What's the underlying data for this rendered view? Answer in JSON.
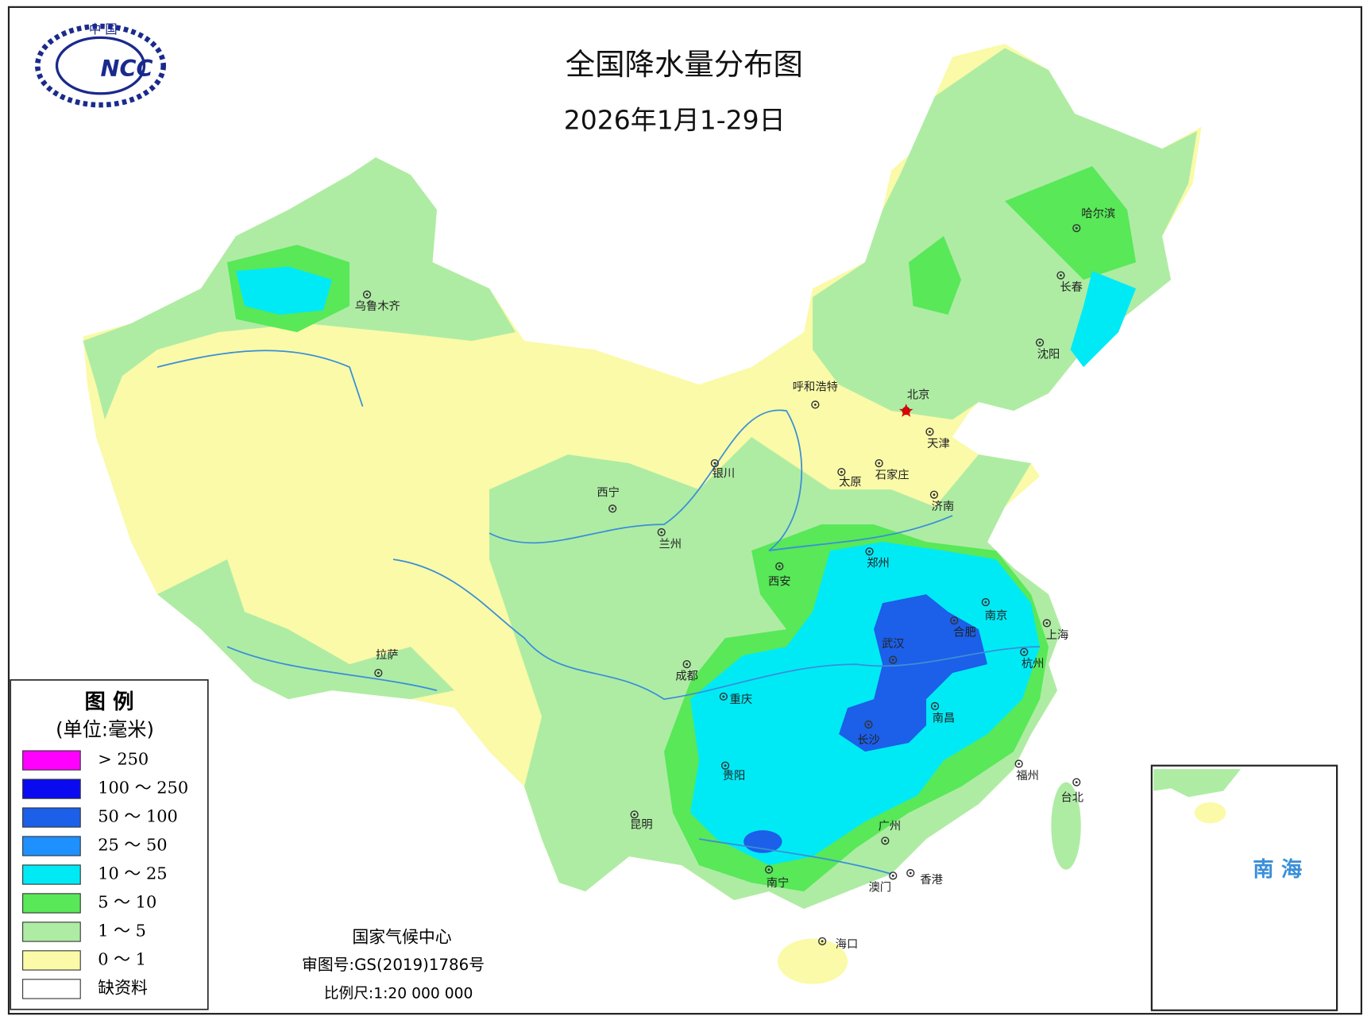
{
  "header": {
    "logo_text": "中 国",
    "logo_abbr": "NCC",
    "title": "全国降水量分布图",
    "subtitle": "2026年1月1-29日"
  },
  "legend": {
    "title": "图 例",
    "unit": "(单位:毫米)",
    "items": [
      {
        "label": "> 250",
        "color": "#ff00ff"
      },
      {
        "label": "100 ～ 250",
        "color": "#0a0af0"
      },
      {
        "label": "50 ～ 100",
        "color": "#1c5fe8"
      },
      {
        "label": "25 ～ 50",
        "color": "#1e90ff"
      },
      {
        "label": "10 ～ 25",
        "color": "#00eaf6"
      },
      {
        "label": "5 ～ 10",
        "color": "#58e858"
      },
      {
        "label": "1 ～ 5",
        "color": "#aeeca4"
      },
      {
        "label": "0 ～ 1",
        "color": "#fafaa8"
      },
      {
        "label": "缺资料",
        "color": "#ffffff"
      }
    ]
  },
  "cities": [
    {
      "name": "乌鲁木齐"
    },
    {
      "name": "拉萨"
    },
    {
      "name": "西宁"
    },
    {
      "name": "兰州"
    },
    {
      "name": "银川"
    },
    {
      "name": "呼和浩特"
    },
    {
      "name": "北京"
    },
    {
      "name": "天津"
    },
    {
      "name": "石家庄"
    },
    {
      "name": "太原"
    },
    {
      "name": "济南"
    },
    {
      "name": "郑州"
    },
    {
      "name": "西安"
    },
    {
      "name": "南京"
    },
    {
      "name": "合肥"
    },
    {
      "name": "上海"
    },
    {
      "name": "武汉"
    },
    {
      "name": "杭州"
    },
    {
      "name": "成都"
    },
    {
      "name": "重庆"
    },
    {
      "name": "长沙"
    },
    {
      "name": "南昌"
    },
    {
      "name": "贵阳"
    },
    {
      "name": "福州"
    },
    {
      "name": "台北"
    },
    {
      "name": "昆明"
    },
    {
      "name": "广州"
    },
    {
      "name": "南宁"
    },
    {
      "name": "香港"
    },
    {
      "name": "澳门"
    },
    {
      "name": "海口"
    },
    {
      "name": "哈尔滨"
    },
    {
      "name": "长春"
    },
    {
      "name": "沈阳"
    }
  ],
  "inset": {
    "label": "南 海"
  },
  "footer": {
    "agency": "国家气候中心",
    "approval": "审图号:GS(2019)1786号",
    "scale": "比例尺:1:20 000 000"
  }
}
